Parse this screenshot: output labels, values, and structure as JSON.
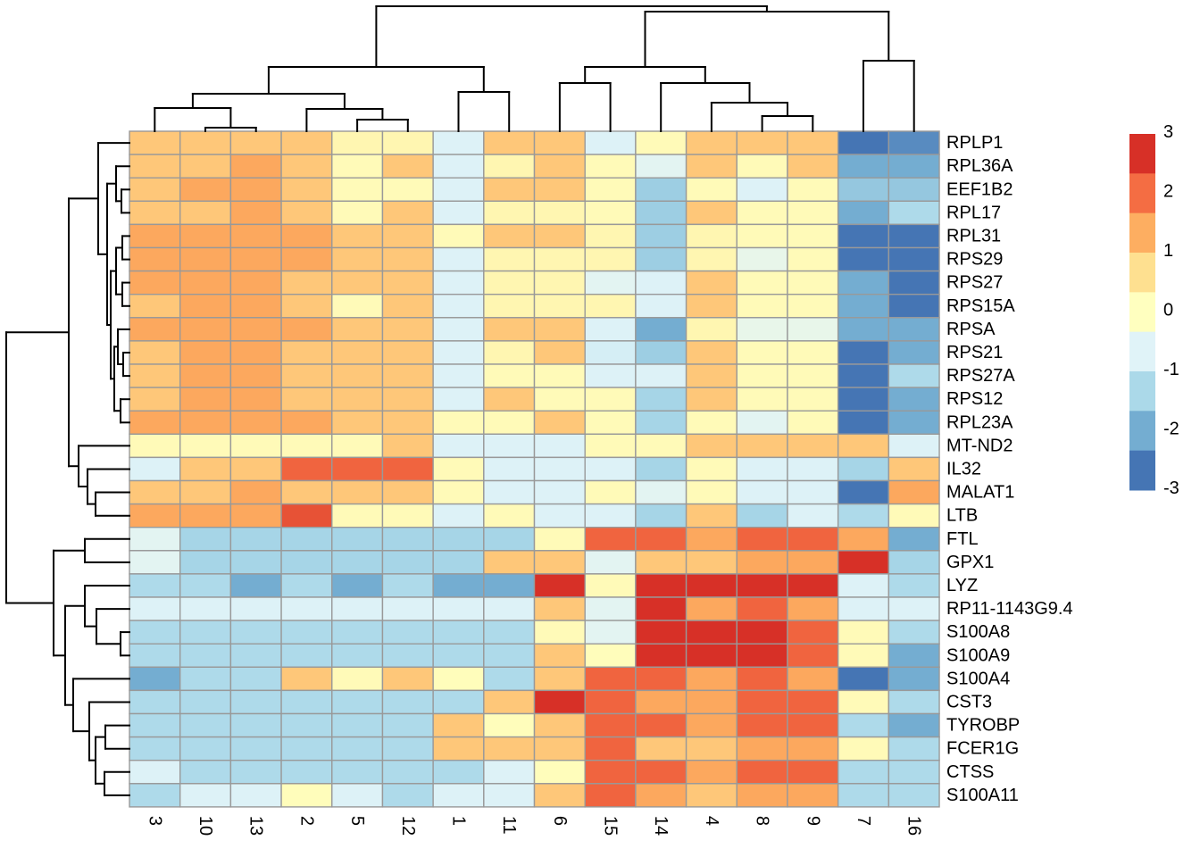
{
  "chart_data": {
    "type": "heatmap",
    "title": "",
    "description": "Hierarchically clustered gene expression heatmap (pheatmap style) with row and column dendrograms and a color scale legend",
    "columns": [
      "3",
      "10",
      "13",
      "2",
      "5",
      "12",
      "1",
      "11",
      "6",
      "15",
      "14",
      "4",
      "8",
      "9",
      "7",
      "16"
    ],
    "rows": [
      "RPLP1",
      "RPL36A",
      "EEF1B2",
      "RPL17",
      "RPL31",
      "RPS29",
      "RPS27",
      "RPS15A",
      "RPSA",
      "RPS21",
      "RPS27A",
      "RPS12",
      "RPL23A",
      "MT-ND2",
      "IL32",
      "MALAT1",
      "LTB",
      "FTL",
      "GPX1",
      "LYZ",
      "RP11-1143G9.4",
      "S100A8",
      "S100A9",
      "S100A4",
      "CST3",
      "TYROBP",
      "FCER1G",
      "CTSS",
      "S100A11"
    ],
    "values": [
      [
        1.0,
        1.0,
        1.0,
        1.0,
        0.2,
        0.2,
        -0.7,
        1.0,
        1.0,
        -0.7,
        0.1,
        1.0,
        1.0,
        1.0,
        -2.8,
        -2.4
      ],
      [
        1.0,
        1.0,
        1.4,
        1.0,
        0.1,
        1.0,
        -0.7,
        0.2,
        1.0,
        0.1,
        -0.6,
        1.0,
        0.1,
        1.0,
        -2.0,
        -2.0
      ],
      [
        1.0,
        1.4,
        1.4,
        1.0,
        0.1,
        0.1,
        -0.7,
        1.0,
        1.0,
        0.1,
        -1.5,
        0.1,
        -0.7,
        0.1,
        -1.6,
        -1.6
      ],
      [
        1.0,
        1.0,
        1.4,
        1.0,
        0.1,
        1.0,
        -0.7,
        0.2,
        0.2,
        0.1,
        -1.5,
        1.0,
        0.1,
        0.1,
        -2.0,
        -1.3
      ],
      [
        1.4,
        1.4,
        1.4,
        1.4,
        1.0,
        1.0,
        0.1,
        1.0,
        1.0,
        0.2,
        -1.5,
        0.2,
        0.1,
        0.1,
        -2.7,
        -2.7
      ],
      [
        1.4,
        1.4,
        1.4,
        1.4,
        1.0,
        1.0,
        -0.7,
        0.2,
        0.2,
        0.2,
        -1.5,
        0.2,
        -0.5,
        0.1,
        -2.8,
        -2.8
      ],
      [
        1.4,
        1.4,
        1.4,
        1.0,
        1.0,
        1.0,
        -0.7,
        0.2,
        0.2,
        -0.6,
        -0.7,
        1.0,
        0.1,
        0.1,
        -2.0,
        -2.7
      ],
      [
        1.0,
        1.4,
        1.4,
        1.0,
        0.1,
        1.0,
        -0.7,
        0.2,
        0.2,
        0.2,
        -0.7,
        1.0,
        0.1,
        0.1,
        -2.0,
        -2.7
      ],
      [
        1.4,
        1.4,
        1.4,
        1.4,
        1.0,
        1.0,
        -0.7,
        1.0,
        1.0,
        -0.7,
        -2.0,
        0.2,
        -0.5,
        -0.5,
        -2.0,
        -2.0
      ],
      [
        1.0,
        1.4,
        1.4,
        1.0,
        1.0,
        1.0,
        -0.7,
        0.2,
        1.0,
        -0.8,
        -1.5,
        1.0,
        0.1,
        0.1,
        -2.7,
        -2.0
      ],
      [
        1.0,
        1.4,
        1.4,
        1.0,
        1.0,
        1.0,
        -0.7,
        0.1,
        0.1,
        -0.7,
        -0.7,
        1.0,
        0.1,
        0.1,
        -2.7,
        -1.3
      ],
      [
        1.0,
        1.4,
        1.4,
        1.0,
        1.0,
        1.0,
        -0.7,
        1.0,
        0.1,
        0.1,
        -1.4,
        1.0,
        0.1,
        0.1,
        -2.7,
        -2.0
      ],
      [
        1.4,
        1.4,
        1.4,
        1.4,
        1.0,
        1.0,
        0.1,
        0.1,
        1.0,
        0.1,
        -1.4,
        0.1,
        -0.6,
        0.1,
        -2.7,
        -2.0
      ],
      [
        0.1,
        0.1,
        0.1,
        0.1,
        0.1,
        1.0,
        -0.7,
        -0.7,
        -0.7,
        0.1,
        0.1,
        1.0,
        1.0,
        1.0,
        1.0,
        -0.7
      ],
      [
        -0.7,
        1.0,
        1.0,
        2.1,
        2.1,
        2.1,
        0.1,
        -0.7,
        -0.7,
        -0.7,
        -1.4,
        0.1,
        -0.7,
        -0.7,
        -1.4,
        1.0
      ],
      [
        1.0,
        1.0,
        1.4,
        1.0,
        1.0,
        1.0,
        0.1,
        -0.7,
        -0.7,
        0.1,
        -0.6,
        0.1,
        -0.7,
        -0.7,
        -2.7,
        1.4
      ],
      [
        1.4,
        1.4,
        1.4,
        2.3,
        0.1,
        0.1,
        -0.7,
        0.1,
        -0.7,
        -0.7,
        -1.4,
        1.0,
        -1.4,
        -0.7,
        -1.3,
        0.1
      ],
      [
        -0.6,
        -1.4,
        -1.4,
        -1.4,
        -1.4,
        -1.4,
        -1.4,
        -1.4,
        0.1,
        2.1,
        2.1,
        1.4,
        2.1,
        2.1,
        1.4,
        -2.0
      ],
      [
        -0.6,
        -1.4,
        -1.4,
        -1.4,
        -1.4,
        -1.4,
        -1.4,
        1.0,
        1.0,
        -0.6,
        1.0,
        1.0,
        1.4,
        1.4,
        2.8,
        -1.4
      ],
      [
        -1.3,
        -1.3,
        -2.0,
        -1.3,
        -2.0,
        -1.3,
        -2.0,
        -2.0,
        2.8,
        0.1,
        2.8,
        2.8,
        2.8,
        2.8,
        -0.7,
        -1.3
      ],
      [
        -0.7,
        -0.7,
        -0.7,
        -0.7,
        -0.7,
        -0.7,
        -0.7,
        -0.7,
        1.0,
        -0.6,
        2.8,
        1.4,
        2.1,
        1.4,
        -0.7,
        -0.7
      ],
      [
        -1.3,
        -1.3,
        -1.3,
        -1.3,
        -1.3,
        -1.3,
        -1.3,
        -1.3,
        0.1,
        -0.6,
        2.8,
        2.8,
        2.8,
        2.1,
        0.1,
        -1.3
      ],
      [
        -1.3,
        -1.3,
        -1.3,
        -1.3,
        -1.3,
        -1.3,
        -1.3,
        -1.3,
        1.0,
        0.05,
        2.8,
        2.8,
        2.8,
        2.1,
        0.1,
        -2.0
      ],
      [
        -2.0,
        -1.3,
        -1.3,
        1.0,
        0.1,
        1.0,
        0.05,
        -1.3,
        1.0,
        2.1,
        2.1,
        1.4,
        2.1,
        1.4,
        -2.8,
        -2.0
      ],
      [
        -1.3,
        -1.3,
        -1.3,
        -1.3,
        -1.3,
        -1.3,
        -1.3,
        1.0,
        2.8,
        2.1,
        1.4,
        1.4,
        2.1,
        2.1,
        0.1,
        -1.3
      ],
      [
        -1.3,
        -1.3,
        -1.3,
        -1.3,
        -1.3,
        -1.3,
        1.0,
        0.05,
        1.0,
        2.1,
        2.1,
        1.4,
        2.1,
        2.1,
        -1.3,
        -2.0
      ],
      [
        -1.3,
        -1.3,
        -1.3,
        -1.3,
        -1.3,
        -1.3,
        1.0,
        1.0,
        1.0,
        2.1,
        1.0,
        1.0,
        1.4,
        1.4,
        0.1,
        -1.3
      ],
      [
        -0.7,
        -1.3,
        -1.3,
        -1.3,
        -1.3,
        -1.3,
        -1.3,
        -0.7,
        0.05,
        2.1,
        2.1,
        1.4,
        2.1,
        2.1,
        -1.3,
        -1.3
      ],
      [
        -1.3,
        -0.7,
        -0.7,
        0.05,
        -0.7,
        -1.3,
        -0.7,
        -0.7,
        1.0,
        2.1,
        1.4,
        1.0,
        1.4,
        1.4,
        -1.3,
        -1.3
      ]
    ],
    "scale": {
      "min": -3,
      "max": 3,
      "legend_ticks": [
        "3",
        "2",
        "1",
        "0",
        "-1",
        "-2",
        "-3"
      ]
    },
    "palette_low_to_high": [
      "#4575b4",
      "#74add1",
      "#abd9e9",
      "#e0f3f8",
      "#ffffbf",
      "#fee090",
      "#fdae61",
      "#f46d43",
      "#d73027"
    ],
    "grid_line_color": "#999999",
    "dendrogram_color": "#000000",
    "column_dendrogram": [
      7,
      [
        75,
        [
          105,
          [
            121,
            0,
            [
              143,
              1,
              2
            ]
          ],
          [
            122,
            3,
            [
              134,
              4,
              5
            ]
          ]
        ],
        [
          103,
          6,
          7
        ]
      ],
      [
        13,
        [
          75,
          [
            93,
            8,
            9
          ],
          [
            93,
            10,
            [
              115,
              11,
              [
                130,
                12,
                13
              ]
            ]
          ]
        ],
        [
          68,
          14,
          15
        ]
      ]
    ],
    "row_dendrogram": [
      7,
      [
        77,
        [
          110,
          0,
          [
            120,
            [
              130,
              1,
              [
                136,
                2,
                3
              ]
            ],
            [
              124,
              [
                130,
                [
                  137,
                  4,
                  5
                ],
                [
                  137,
                  6,
                  7
                ]
              ],
              [
                128,
                [
                  132,
                  8,
                  [
                    138,
                    9,
                    10
                  ]
                ],
                [
                  135,
                  11,
                  12
                ]
              ]
            ]
          ]
        ],
        [
          88,
          13,
          [
            98,
            14,
            [
              107,
              15,
              16
            ]
          ]
        ]
      ],
      [
        60,
        [
          95,
          17,
          18
        ],
        [
          73,
          [
            95,
            19,
            [
              108,
              20,
              [
                135,
                21,
                22
              ]
            ]
          ],
          [
            82,
            23,
            [
              100,
              24,
              [
                107,
                [
                  118,
                  25,
                  26
                ],
                [
                  117,
                  27,
                  28
                ]
              ]
            ]
          ]
        ]
      ]
    ],
    "legend_position": "right",
    "row_labels_position": "right",
    "column_labels_rotation_deg": 90
  }
}
